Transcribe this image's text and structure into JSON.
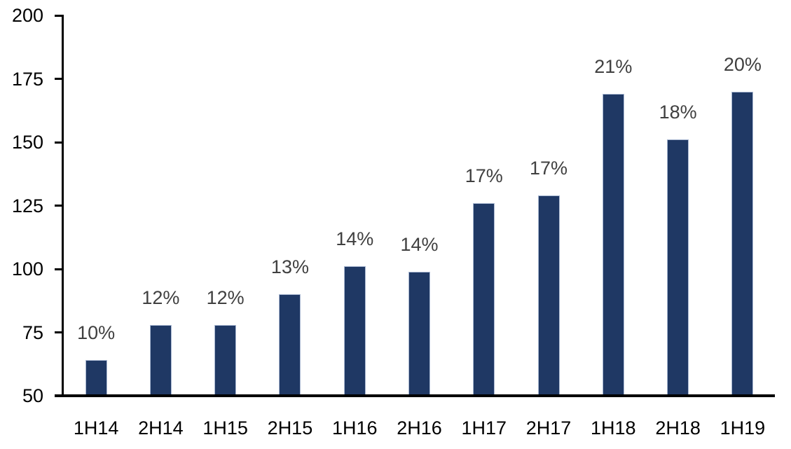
{
  "chart_data": {
    "type": "bar",
    "title": "",
    "xlabel": "",
    "ylabel": "",
    "categories": [
      "1H14",
      "2H14",
      "1H15",
      "2H15",
      "1H16",
      "2H16",
      "1H17",
      "2H17",
      "1H18",
      "2H18",
      "1H19"
    ],
    "values": [
      64,
      78,
      78,
      90,
      101,
      99,
      126,
      129,
      169,
      151,
      170
    ],
    "bar_labels": [
      "10%",
      "12%",
      "12%",
      "13%",
      "14%",
      "14%",
      "17%",
      "17%",
      "21%",
      "18%",
      "20%"
    ],
    "ylim": [
      50,
      200
    ],
    "yticks": [
      50,
      75,
      100,
      125,
      150,
      175,
      200
    ],
    "grid": false,
    "legend": "none",
    "colors": {
      "bar_fill": "#1F3864",
      "bar_border": "#A9B8D2",
      "bar_label_text": "#404040",
      "axis_text": "#000000",
      "axis_line": "#000000",
      "background": "#FFFFFF"
    }
  }
}
